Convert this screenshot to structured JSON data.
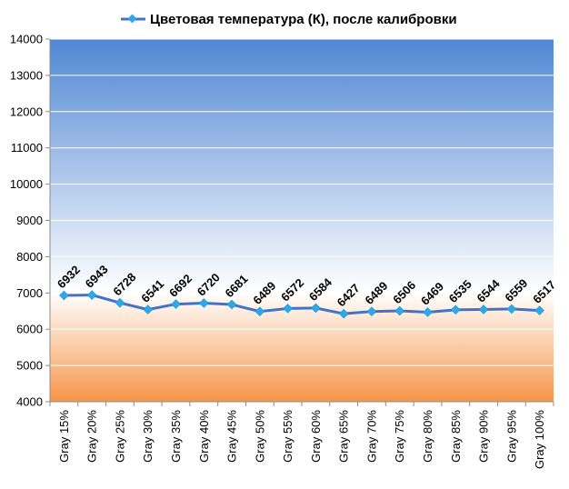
{
  "chart_data": {
    "type": "line",
    "title": "",
    "xlabel": "",
    "ylabel": "",
    "categories": [
      "Gray 15%",
      "Gray 20%",
      "Gray 25%",
      "Gray 30%",
      "Gray 35%",
      "Gray 40%",
      "Gray 45%",
      "Gray 50%",
      "Gray 55%",
      "Gray 60%",
      "Gray 65%",
      "Gray 70%",
      "Gray 75%",
      "Gray 80%",
      "Gray 85%",
      "Gray 90%",
      "Gray 95%",
      "Gray 100%"
    ],
    "series": [
      {
        "name": "Цветовая температура (К), после калибровки",
        "values": [
          6932,
          6943,
          6728,
          6541,
          6692,
          6720,
          6681,
          6489,
          6572,
          6584,
          6427,
          6489,
          6506,
          6469,
          6535,
          6544,
          6559,
          6517
        ],
        "color": "#4472C4",
        "marker_color": "#2EA8E6"
      }
    ],
    "ylim": [
      4000,
      14000
    ],
    "yticks": [
      4000,
      5000,
      6000,
      7000,
      8000,
      9000,
      10000,
      11000,
      12000,
      13000,
      14000
    ],
    "grid": true,
    "legend": "top",
    "data_labels": true,
    "background": {
      "upper_top": "#5087D4",
      "upper_bottom": "#FFFFFF",
      "lower_top": "#FFFFFF",
      "lower_bottom": "#F7954A",
      "split_value": 7000
    }
  }
}
